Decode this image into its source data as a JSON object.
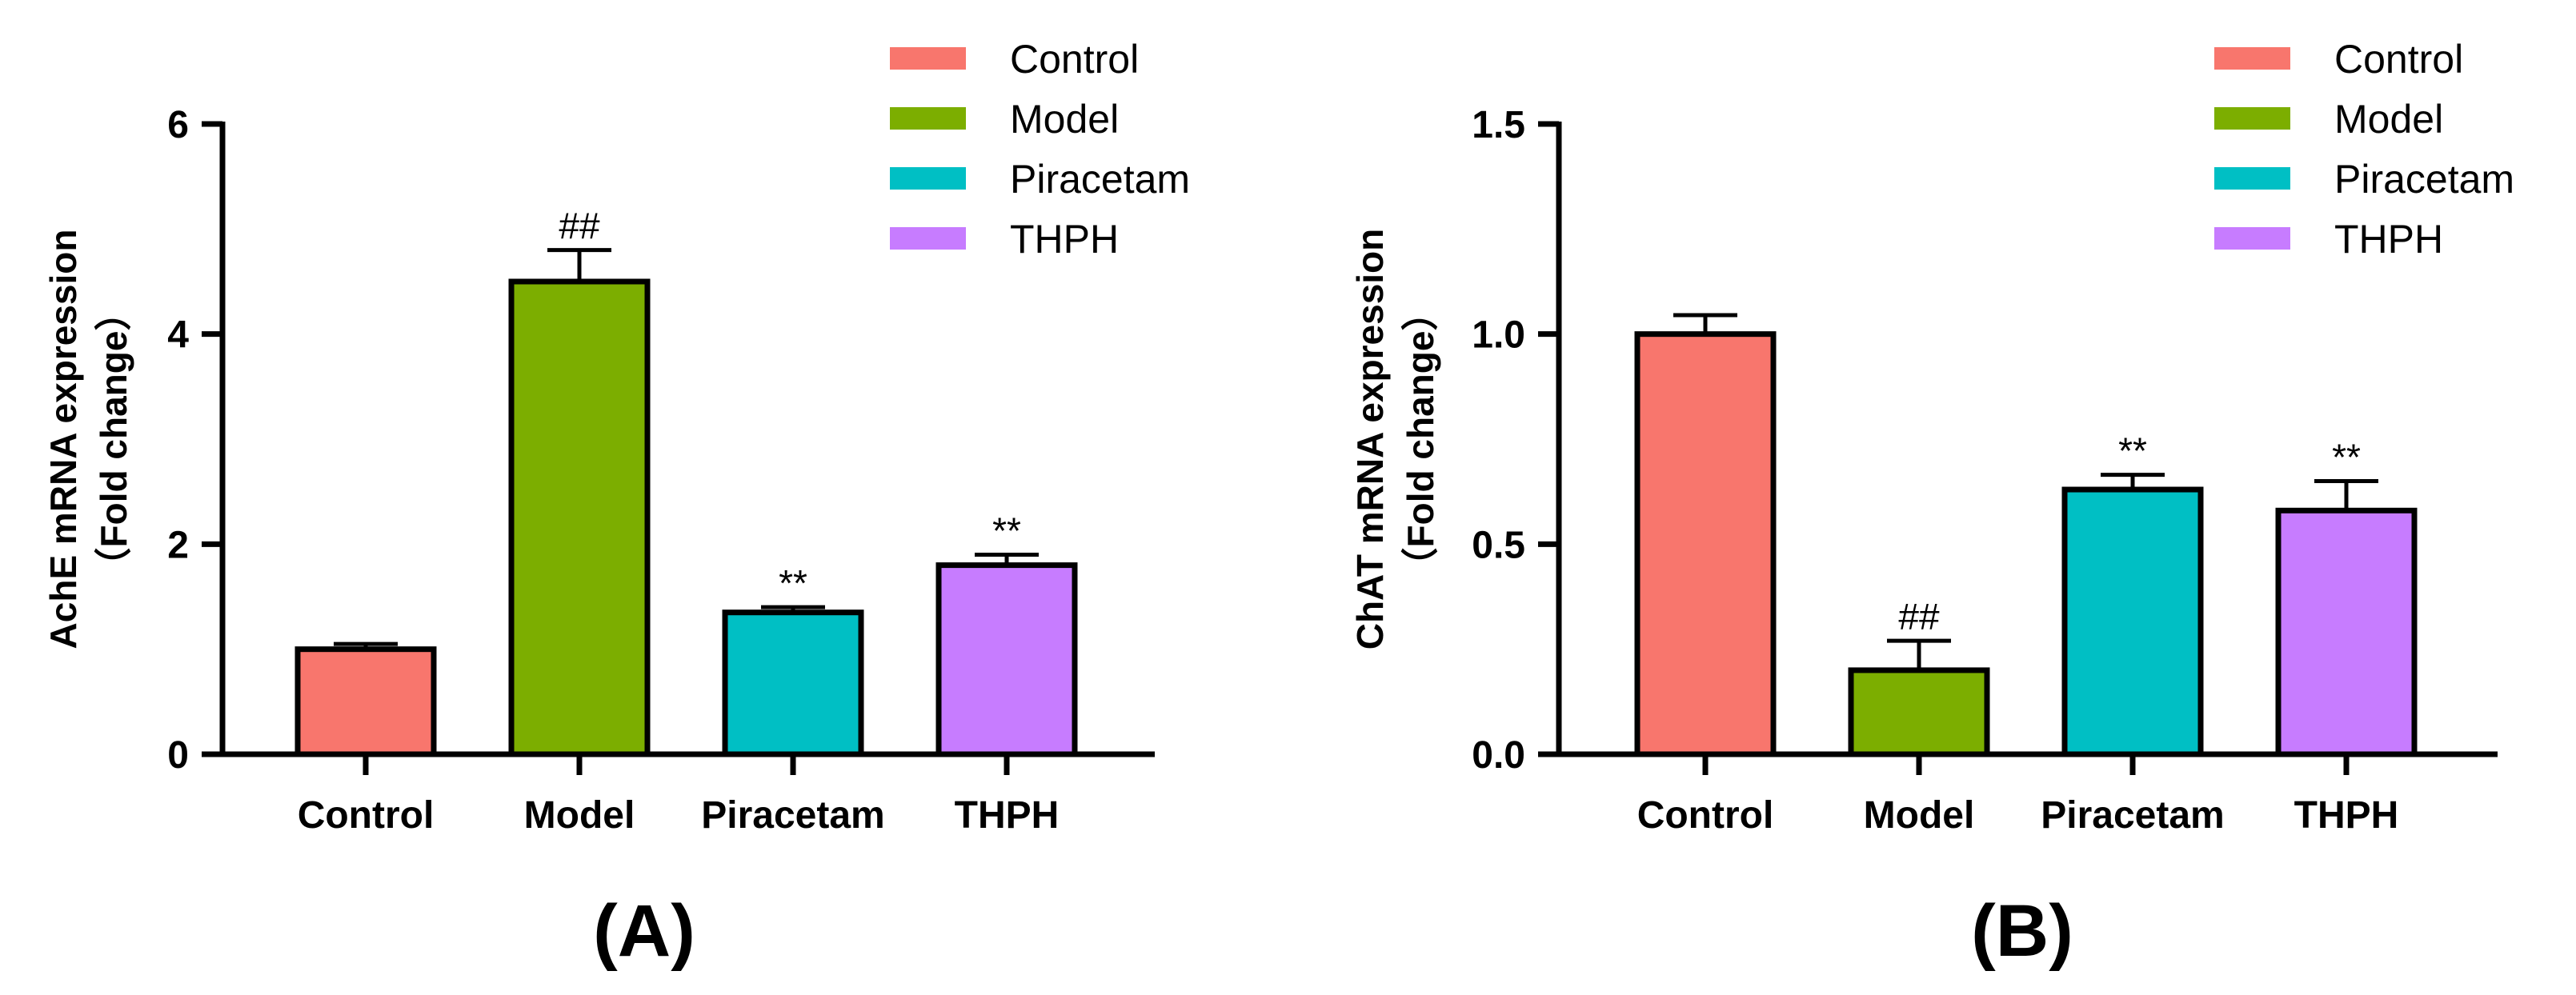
{
  "chart_data": [
    {
      "type": "bar",
      "panel_label": "(A)",
      "title": "",
      "xlabel": "",
      "ylabel_line1": "AchE mRNA expression",
      "ylabel_line2": "（Fold change）",
      "categories": [
        "Control",
        "Model",
        "Piracetam",
        "THPH"
      ],
      "values": [
        1.0,
        4.5,
        1.35,
        1.8
      ],
      "errors": [
        0.05,
        0.3,
        0.05,
        0.1
      ],
      "significance": [
        "",
        "##",
        "**",
        "**"
      ],
      "colors": [
        "#F8766D",
        "#7CAE00",
        "#00BFC4",
        "#C77CFF"
      ],
      "ylim": [
        0,
        6
      ],
      "yticks": [
        0,
        2,
        4,
        6
      ],
      "ytick_labels": [
        "0",
        "2",
        "4",
        "6"
      ],
      "legend": [
        "Control",
        "Model",
        "Piracetam",
        "THPH"
      ],
      "legend_position": "top-right"
    },
    {
      "type": "bar",
      "panel_label": "(B)",
      "title": "",
      "xlabel": "",
      "ylabel_line1": "ChAT mRNA expression",
      "ylabel_line2": "（Fold change）",
      "categories": [
        "Control",
        "Model",
        "Piracetam",
        "THPH"
      ],
      "values": [
        1.0,
        0.2,
        0.63,
        0.58
      ],
      "errors": [
        0.045,
        0.07,
        0.035,
        0.07
      ],
      "significance": [
        "",
        "##",
        "**",
        "**"
      ],
      "colors": [
        "#F8766D",
        "#7CAE00",
        "#00BFC4",
        "#C77CFF"
      ],
      "ylim": [
        0,
        1.5
      ],
      "yticks": [
        0,
        0.5,
        1.0,
        1.5
      ],
      "ytick_labels": [
        "0.0",
        "0.5",
        "1.0",
        "1.5"
      ],
      "legend": [
        "Control",
        "Model",
        "Piracetam",
        "THPH"
      ],
      "legend_position": "top-right"
    }
  ]
}
